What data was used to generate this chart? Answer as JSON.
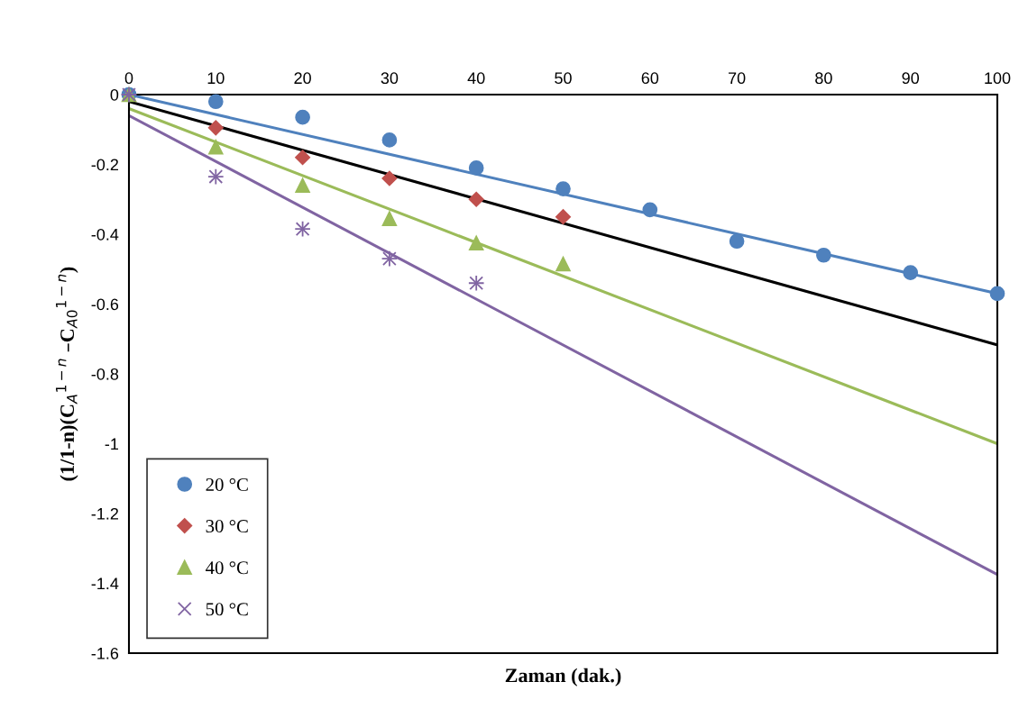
{
  "chart_data": {
    "type": "scatter",
    "xlabel": "Zaman (dak.)",
    "ylabel": "(1/1-n)(C$_{A}$$^{1−n}$ –C$_{A0}$$^{1−n}$)",
    "x": [
      0,
      10,
      20,
      30,
      40,
      50,
      60,
      70,
      80,
      90,
      100
    ],
    "xlim": [
      0,
      100
    ],
    "xticks": [
      0,
      10,
      20,
      30,
      40,
      50,
      60,
      70,
      80,
      90,
      100
    ],
    "ylim": [
      -1.6,
      0
    ],
    "yticks": [
      -1.6,
      -1.4,
      -1.2,
      -1,
      -0.8,
      -0.6,
      -0.4,
      -0.2,
      0
    ],
    "grid": false,
    "legend": "bottom left",
    "series": [
      {
        "name": "20 °C",
        "color": "#4f81bd",
        "marker": "circle",
        "values": [
          0,
          -0.02,
          -0.065,
          -0.13,
          -0.21,
          -0.27,
          -0.33,
          -0.42,
          -0.46,
          -0.51,
          -0.57
        ]
      },
      {
        "name": "30 °C",
        "color": "#c0504d",
        "marker": "diamond",
        "values": [
          null,
          -0.095,
          -0.18,
          -0.24,
          -0.3,
          -0.35,
          null,
          null,
          null,
          null,
          null
        ]
      },
      {
        "name": "40 °C",
        "color": "#9bbb59",
        "marker": "triangle",
        "values": [
          0,
          -0.15,
          -0.26,
          -0.355,
          -0.425,
          -0.485,
          null,
          null,
          null,
          null,
          null
        ]
      },
      {
        "name": "50 °C",
        "color": "#8064a2",
        "marker": "cross",
        "values": [
          0,
          -0.235,
          -0.385,
          -0.47,
          -0.54,
          null,
          null,
          null,
          null,
          null,
          null
        ]
      },
      {
        "type": "line",
        "color": "#4f81bd",
        "values": [
          0,
          null,
          null,
          null,
          null,
          null,
          null,
          null,
          null,
          null,
          -0.57
        ]
      },
      {
        "type": "line",
        "color": "#000000",
        "values": [
          -0.02,
          null,
          null,
          null,
          null,
          null,
          null,
          null,
          null,
          null,
          -0.717
        ]
      },
      {
        "type": "line",
        "color": "#9bbb59",
        "values": [
          -0.04,
          null,
          null,
          null,
          null,
          null,
          null,
          null,
          null,
          null,
          -1.0
        ]
      },
      {
        "type": "line",
        "color": "#8064a2",
        "values": [
          -0.06,
          null,
          null,
          null,
          null,
          null,
          null,
          null,
          null,
          null,
          -1.375
        ]
      }
    ]
  }
}
